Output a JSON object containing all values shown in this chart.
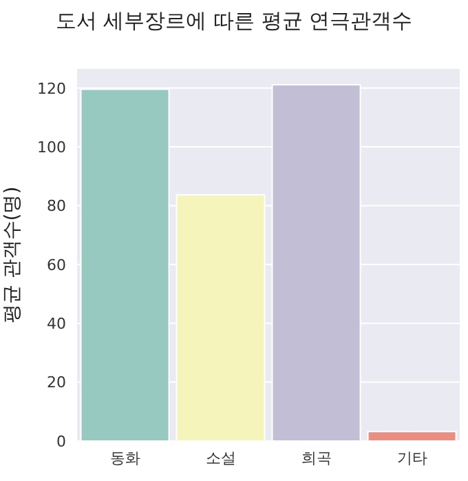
{
  "chart_data": {
    "type": "bar",
    "title": "도서 세부장르에 따른 평균 연극관객수",
    "ylabel": "평균 관객수(명)",
    "categories": [
      "동화",
      "소설",
      "희곡",
      "기타"
    ],
    "values": [
      119.6,
      83.7,
      121.1,
      3.2
    ],
    "colors": [
      "#98c9c0",
      "#f5f5bb",
      "#c2bed6",
      "#ec8d82"
    ],
    "ylim": [
      0,
      126.5
    ],
    "yticks": [
      0,
      20,
      40,
      60,
      80,
      100,
      120
    ],
    "grid": "y"
  }
}
